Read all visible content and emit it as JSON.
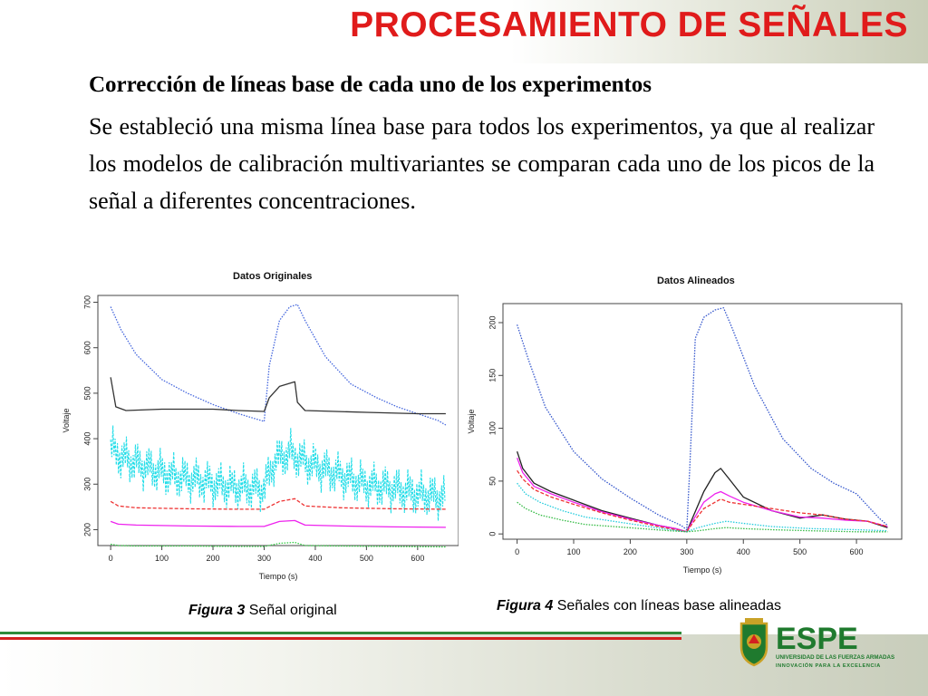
{
  "slide": {
    "title": "PROCESAMIENTO DE SEÑALES",
    "subtitle": "Corrección de líneas base de cada uno de los experimentos",
    "paragraph": "Se estableció una misma línea base para todos los experimentos, ya que al realizar los modelos de calibración multivariantes se comparan cada uno de los picos de la señal a diferentes concentraciones."
  },
  "captions": {
    "fig3_label": "Figura 3",
    "fig3_text": "Señal original",
    "fig4_label": "Figura 4",
    "fig4_text": "Señales con líneas base alineadas"
  },
  "logo": {
    "name": "ESPE",
    "line1": "UNIVERSIDAD DE LAS FUERZAS ARMADAS",
    "line2": "INNOVACIÓN PARA LA EXCELENCIA",
    "colors": {
      "green": "#1f7a2e",
      "red": "#d42020",
      "gold": "#c9a227"
    }
  },
  "colors": {
    "title": "#e01b1b",
    "rule_green": "#2e8b3a",
    "rule_red": "#d42020"
  },
  "chart_data": [
    {
      "type": "line",
      "title": "Datos Originales",
      "xlabel": "Tiempo (s)",
      "ylabel": "Voltaje",
      "xlim": [
        -25,
        680
      ],
      "ylim": [
        165,
        715
      ],
      "xticks": [
        0,
        100,
        200,
        300,
        400,
        500,
        600
      ],
      "yticks": [
        200,
        300,
        400,
        500,
        600,
        700
      ],
      "series": [
        {
          "color": "#4466dd",
          "style": "dotted",
          "x": [
            0,
            20,
            50,
            100,
            150,
            200,
            250,
            300,
            310,
            330,
            350,
            365,
            380,
            420,
            470,
            520,
            560,
            600,
            640,
            655
          ],
          "y": [
            690,
            640,
            585,
            530,
            500,
            475,
            455,
            438,
            560,
            660,
            690,
            695,
            660,
            580,
            520,
            490,
            470,
            455,
            440,
            430
          ]
        },
        {
          "color": "#333333",
          "style": "solid",
          "x": [
            0,
            10,
            30,
            100,
            200,
            250,
            300,
            310,
            330,
            360,
            365,
            380,
            440,
            500,
            600,
            655
          ],
          "y": [
            535,
            470,
            462,
            465,
            465,
            462,
            460,
            490,
            515,
            525,
            480,
            462,
            460,
            458,
            455,
            455
          ]
        },
        {
          "color": "#ee3333",
          "style": "dashed",
          "x": [
            0,
            15,
            50,
            150,
            250,
            300,
            330,
            360,
            380,
            450,
            550,
            655
          ],
          "y": [
            262,
            252,
            248,
            246,
            245,
            245,
            262,
            268,
            252,
            248,
            246,
            245
          ]
        },
        {
          "color": "#ee22ee",
          "style": "solid",
          "x": [
            0,
            15,
            50,
            150,
            250,
            300,
            330,
            360,
            380,
            450,
            550,
            655
          ],
          "y": [
            218,
            212,
            210,
            208,
            207,
            207,
            218,
            220,
            210,
            208,
            206,
            205
          ]
        },
        {
          "color": "#33cc44",
          "style": "dotted",
          "x": [
            0,
            15,
            50,
            150,
            250,
            300,
            330,
            360,
            380,
            450,
            550,
            655
          ],
          "y": [
            168,
            165,
            164,
            164,
            163,
            163,
            170,
            172,
            165,
            164,
            163,
            162
          ]
        }
      ],
      "noisy_series": {
        "color": "#22dde8",
        "baseline": {
          "x": [
            0,
            20,
            60,
            120,
            200,
            290,
            300,
            320,
            350,
            380,
            420,
            500,
            600,
            655
          ],
          "y": [
            380,
            360,
            340,
            320,
            300,
            290,
            290,
            350,
            370,
            350,
            330,
            300,
            280,
            270
          ]
        },
        "amplitude": 55
      }
    },
    {
      "type": "line",
      "title": "Datos Alineados",
      "xlabel": "Tiempo (s)",
      "ylabel": "Voltaje",
      "xlim": [
        -25,
        680
      ],
      "ylim": [
        -5,
        218
      ],
      "xticks": [
        0,
        100,
        200,
        300,
        400,
        500,
        600
      ],
      "yticks": [
        0,
        50,
        100,
        150,
        200
      ],
      "series": [
        {
          "color": "#3355cc",
          "style": "dotted",
          "x": [
            0,
            20,
            50,
            100,
            150,
            200,
            250,
            290,
            300,
            305,
            315,
            330,
            350,
            365,
            380,
            420,
            470,
            520,
            560,
            600,
            640,
            655
          ],
          "y": [
            198,
            165,
            120,
            78,
            52,
            34,
            18,
            8,
            4,
            60,
            185,
            205,
            212,
            214,
            195,
            140,
            90,
            62,
            48,
            38,
            15,
            8
          ]
        },
        {
          "color": "#222222",
          "style": "solid",
          "x": [
            0,
            10,
            30,
            60,
            100,
            150,
            200,
            250,
            280,
            300,
            310,
            330,
            350,
            360,
            375,
            400,
            450,
            500,
            540,
            580,
            620,
            655
          ],
          "y": [
            78,
            62,
            48,
            40,
            32,
            22,
            15,
            8,
            5,
            2,
            15,
            40,
            58,
            62,
            52,
            35,
            22,
            15,
            18,
            14,
            12,
            6
          ]
        },
        {
          "color": "#ee22ee",
          "style": "solid",
          "x": [
            0,
            10,
            30,
            60,
            100,
            150,
            200,
            250,
            280,
            300,
            310,
            330,
            350,
            360,
            375,
            400,
            450,
            500,
            540,
            580,
            620,
            655
          ],
          "y": [
            72,
            58,
            45,
            38,
            30,
            21,
            14,
            8,
            5,
            2,
            12,
            30,
            38,
            40,
            36,
            30,
            22,
            16,
            15,
            13,
            12,
            7
          ]
        },
        {
          "color": "#ee3333",
          "style": "dashed",
          "x": [
            0,
            10,
            30,
            60,
            100,
            150,
            200,
            250,
            280,
            300,
            310,
            330,
            350,
            360,
            375,
            400,
            450,
            500,
            540,
            580,
            620,
            655
          ],
          "y": [
            60,
            52,
            42,
            35,
            28,
            20,
            13,
            7,
            4,
            2,
            10,
            24,
            30,
            33,
            30,
            28,
            24,
            20,
            18,
            14,
            12,
            7
          ]
        },
        {
          "color": "#22ccdd",
          "style": "dotted",
          "x": [
            0,
            15,
            40,
            80,
            120,
            170,
            220,
            270,
            300,
            320,
            350,
            370,
            400,
            450,
            520,
            600,
            655
          ],
          "y": [
            48,
            38,
            30,
            22,
            16,
            12,
            8,
            4,
            2,
            6,
            10,
            12,
            10,
            7,
            5,
            4,
            3
          ]
        },
        {
          "color": "#33bb44",
          "style": "dotted",
          "x": [
            0,
            15,
            40,
            80,
            120,
            170,
            220,
            270,
            300,
            320,
            350,
            370,
            400,
            450,
            520,
            600,
            655
          ],
          "y": [
            30,
            24,
            18,
            13,
            9,
            7,
            5,
            3,
            2,
            3,
            5,
            6,
            5,
            4,
            3,
            2,
            2
          ]
        }
      ]
    }
  ]
}
